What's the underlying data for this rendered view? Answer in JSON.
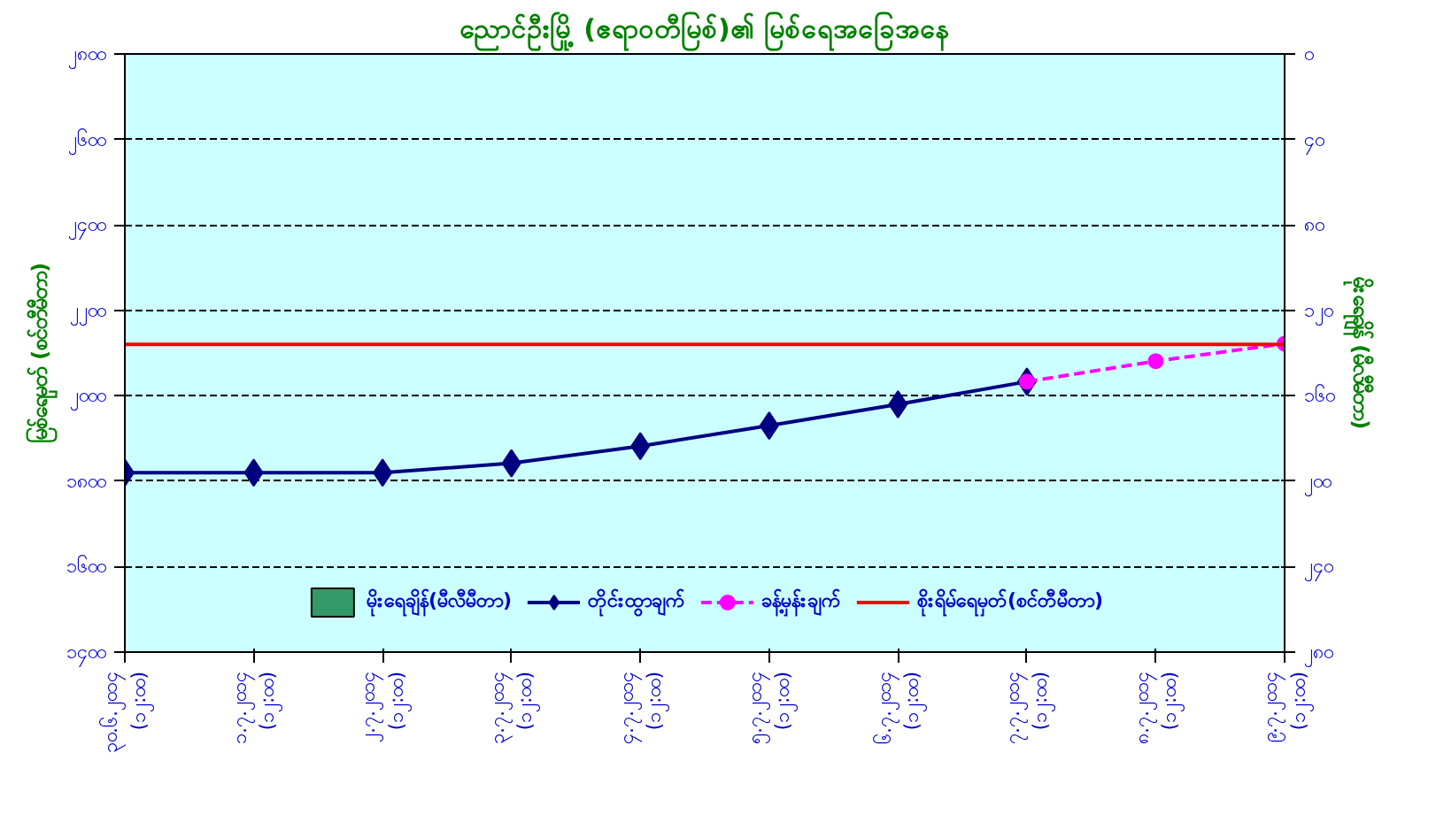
{
  "chart_data": {
    "type": "line",
    "title": "ညောင်ဦးမြို့ (ဧရာဝတီမြစ်)၏ မြစ်ရေအခြေအနေ",
    "ylabel": "မြစ်ရေမှတ် (စင်တီမီတာ)",
    "y2label": "မိုးရေချိန် (မီလီမီတာ)",
    "categories": [
      "၃၀.၆.၂၀၁၄\n(၁၂:၀၀)",
      "၁.၇.၂၀၁၄\n(၁၂:၀၀)",
      "၂.၇.၂၀၁၄\n(၁၂:၀၀)",
      "၃.၇.၂၀၁၄\n(၁၂:၀၀)",
      "၄.၇.၂၀၁၄\n(၁၂:၀၀)",
      "၅.၇.၂၀၁၄\n(၁၂:၀၀)",
      "၆.၇.၂၀၁၄\n(၁၂:၀၀)",
      "၇.၇.၂၀၁၄\n(၁၂:၀၀)",
      "၈.၇.၂၀၁၄\n(၁၂:၀၀)",
      "၉.၇.၂၀၁၄\n(၁၂:၀၀)"
    ],
    "series": [
      {
        "name": "မိုးရေချိန်(မီလီမီတာ)",
        "type": "bar",
        "color": "#339966",
        "values": [
          null,
          null,
          null,
          null,
          null,
          null,
          null,
          null,
          null,
          null
        ]
      },
      {
        "name": "တိုင်းထွာချက်",
        "color": "#000080",
        "marker": "diamond",
        "line_style": "solid",
        "values": [
          1820,
          1820,
          1820,
          1842,
          1882,
          1930,
          1980,
          2033,
          null,
          null
        ]
      },
      {
        "name": "ခန့်မှန်းချက်",
        "color": "#ff00ff",
        "marker": "circle",
        "line_style": "dashed",
        "values": [
          null,
          null,
          null,
          null,
          null,
          null,
          null,
          2033,
          2081,
          2122
        ]
      }
    ],
    "ref_lines": [
      {
        "axis": "y",
        "value": 2120,
        "label": "စိုးရိမ်ရေမှတ်(စင်တီမီတာ)",
        "color": "#ff0000"
      }
    ],
    "ylim": [
      1400,
      2800
    ],
    "yticks": [
      {
        "value": 1400,
        "label": "၁၄၀၀"
      },
      {
        "value": 1600,
        "label": "၁၆၀၀"
      },
      {
        "value": 1800,
        "label": "၁၈၀၀"
      },
      {
        "value": 2000,
        "label": "၂၀၀၀"
      },
      {
        "value": 2200,
        "label": "၂၂၀၀"
      },
      {
        "value": 2400,
        "label": "၂၄၀၀"
      },
      {
        "value": 2600,
        "label": "၂၆၀၀"
      },
      {
        "value": 2800,
        "label": "၂၈၀၀"
      }
    ],
    "y2lim": [
      280,
      0
    ],
    "y2ticks": [
      {
        "value": 0,
        "label": "၀"
      },
      {
        "value": 40,
        "label": "၄၀"
      },
      {
        "value": 80,
        "label": "၈၀"
      },
      {
        "value": 120,
        "label": "၁၂၀"
      },
      {
        "value": 160,
        "label": "၁၆၀"
      },
      {
        "value": 200,
        "label": "၂၀၀"
      },
      {
        "value": 240,
        "label": "၂၄၀"
      },
      {
        "value": 280,
        "label": "၂၈၀"
      }
    ],
    "grid": "y",
    "legend": "bottom"
  }
}
